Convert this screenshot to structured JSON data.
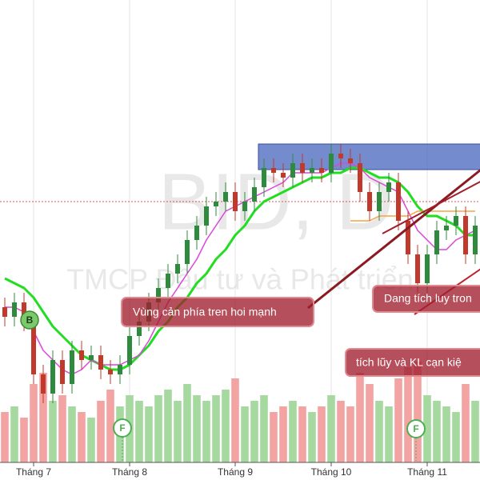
{
  "chart_data": {
    "type": "candlestick",
    "watermark": "BID, D",
    "watermark_subtitle": "TMCP Đầu tư và Phát triển",
    "annotations": [
      "Vùng cản phía tren hoi mạnh",
      "Dang tích luy tron",
      "tích lũy và KL cạn kiệ"
    ],
    "markers": [
      "B",
      "F",
      "F"
    ],
    "categories": [
      null,
      null,
      null,
      "Tháng 7",
      null,
      null,
      null,
      null,
      null,
      null,
      null,
      null,
      null,
      "Tháng 8",
      null,
      null,
      null,
      null,
      null,
      null,
      null,
      null,
      null,
      null,
      "Tháng 9",
      null,
      null,
      null,
      null,
      null,
      null,
      null,
      null,
      null,
      "Tháng 10",
      null,
      null,
      null,
      null,
      null,
      null,
      null,
      null,
      null,
      "Tháng 11",
      null,
      null,
      null,
      null,
      null
    ],
    "open": [
      36,
      34,
      37,
      33,
      22,
      18,
      25,
      20,
      27,
      25,
      26,
      23,
      22,
      24,
      30,
      33,
      37,
      40,
      43,
      45,
      50,
      53,
      57,
      58,
      60,
      56,
      58,
      61,
      65,
      64,
      63,
      66,
      64,
      65,
      64,
      68,
      67,
      66,
      60,
      56,
      60,
      62,
      54,
      47,
      41,
      47,
      52,
      53,
      55,
      47
    ],
    "high": [
      38,
      39,
      39,
      35,
      24,
      27,
      27,
      29,
      29,
      28,
      28,
      25,
      26,
      32,
      35,
      39,
      42,
      45,
      47,
      52,
      55,
      59,
      60,
      62,
      62,
      60,
      63,
      67,
      67,
      66,
      68,
      68,
      67,
      67,
      70,
      70,
      69,
      68,
      62,
      62,
      64,
      64,
      56,
      49,
      49,
      54,
      55,
      57,
      57,
      55
    ],
    "low": [
      32,
      32,
      31,
      20,
      16,
      16,
      18,
      18,
      23,
      23,
      21,
      20,
      20,
      22,
      28,
      31,
      35,
      38,
      41,
      43,
      48,
      51,
      55,
      56,
      54,
      54,
      56,
      59,
      62,
      61,
      61,
      62,
      62,
      62,
      62,
      65,
      64,
      58,
      54,
      54,
      58,
      52,
      45,
      39,
      39,
      45,
      50,
      51,
      45,
      45
    ],
    "close": [
      34,
      37,
      33,
      22,
      18,
      25,
      20,
      27,
      25,
      26,
      23,
      22,
      24,
      30,
      33,
      37,
      40,
      43,
      45,
      50,
      53,
      57,
      58,
      60,
      56,
      58,
      61,
      65,
      64,
      63,
      66,
      64,
      65,
      64,
      68,
      67,
      66,
      60,
      56,
      60,
      62,
      54,
      47,
      41,
      47,
      52,
      53,
      55,
      47,
      53
    ],
    "volume": [
      45,
      50,
      40,
      70,
      80,
      55,
      60,
      50,
      45,
      40,
      55,
      65,
      50,
      60,
      55,
      50,
      60,
      65,
      55,
      70,
      60,
      55,
      60,
      65,
      75,
      50,
      55,
      60,
      45,
      50,
      55,
      50,
      45,
      50,
      60,
      55,
      50,
      80,
      70,
      55,
      50,
      75,
      85,
      90,
      60,
      55,
      50,
      45,
      70,
      55
    ],
    "lines": [
      {
        "color": "#22dd22",
        "values": [
          42,
          41,
          40,
          38,
          35,
          32,
          30,
          28,
          26,
          25,
          24,
          23,
          23,
          24,
          26,
          28,
          31,
          33,
          36,
          38,
          41,
          43,
          46,
          48,
          51,
          53,
          56,
          58,
          59,
          60,
          61,
          62,
          63,
          63,
          64,
          64,
          65,
          65,
          64,
          63,
          63,
          62,
          60,
          57,
          55,
          55,
          54,
          53,
          51,
          51
        ]
      },
      {
        "color": "#dd44dd",
        "values": [
          36,
          36,
          35,
          31,
          27,
          25,
          23,
          22,
          23,
          25,
          24,
          24,
          24,
          25,
          26,
          29,
          33,
          37,
          40,
          43,
          46,
          50,
          53,
          56,
          57,
          58,
          59,
          60,
          61,
          62,
          64,
          64,
          64,
          64,
          65,
          66,
          66,
          65,
          63,
          62,
          61,
          60,
          56,
          52,
          50,
          48,
          48,
          50,
          51,
          52
        ]
      },
      {
        "color": "#f5a341",
        "values": [
          null,
          null,
          null,
          null,
          null,
          null,
          null,
          null,
          null,
          null,
          null,
          null,
          null,
          null,
          null,
          null,
          null,
          null,
          null,
          null,
          null,
          null,
          null,
          null,
          null,
          null,
          null,
          null,
          null,
          null,
          null,
          null,
          null,
          null,
          null,
          null,
          54,
          54,
          54,
          55,
          55,
          55,
          55,
          56,
          56,
          56,
          56,
          56,
          56,
          56
        ]
      }
    ],
    "up_color": "#2e8b3e",
    "down_color": "#c0392b",
    "volume_up_color": "#a6d9a0",
    "volume_down_color": "#f4a3a3",
    "ylim": [
      0,
      100
    ],
    "y2lim": [
      0,
      100
    ],
    "grid": true
  }
}
